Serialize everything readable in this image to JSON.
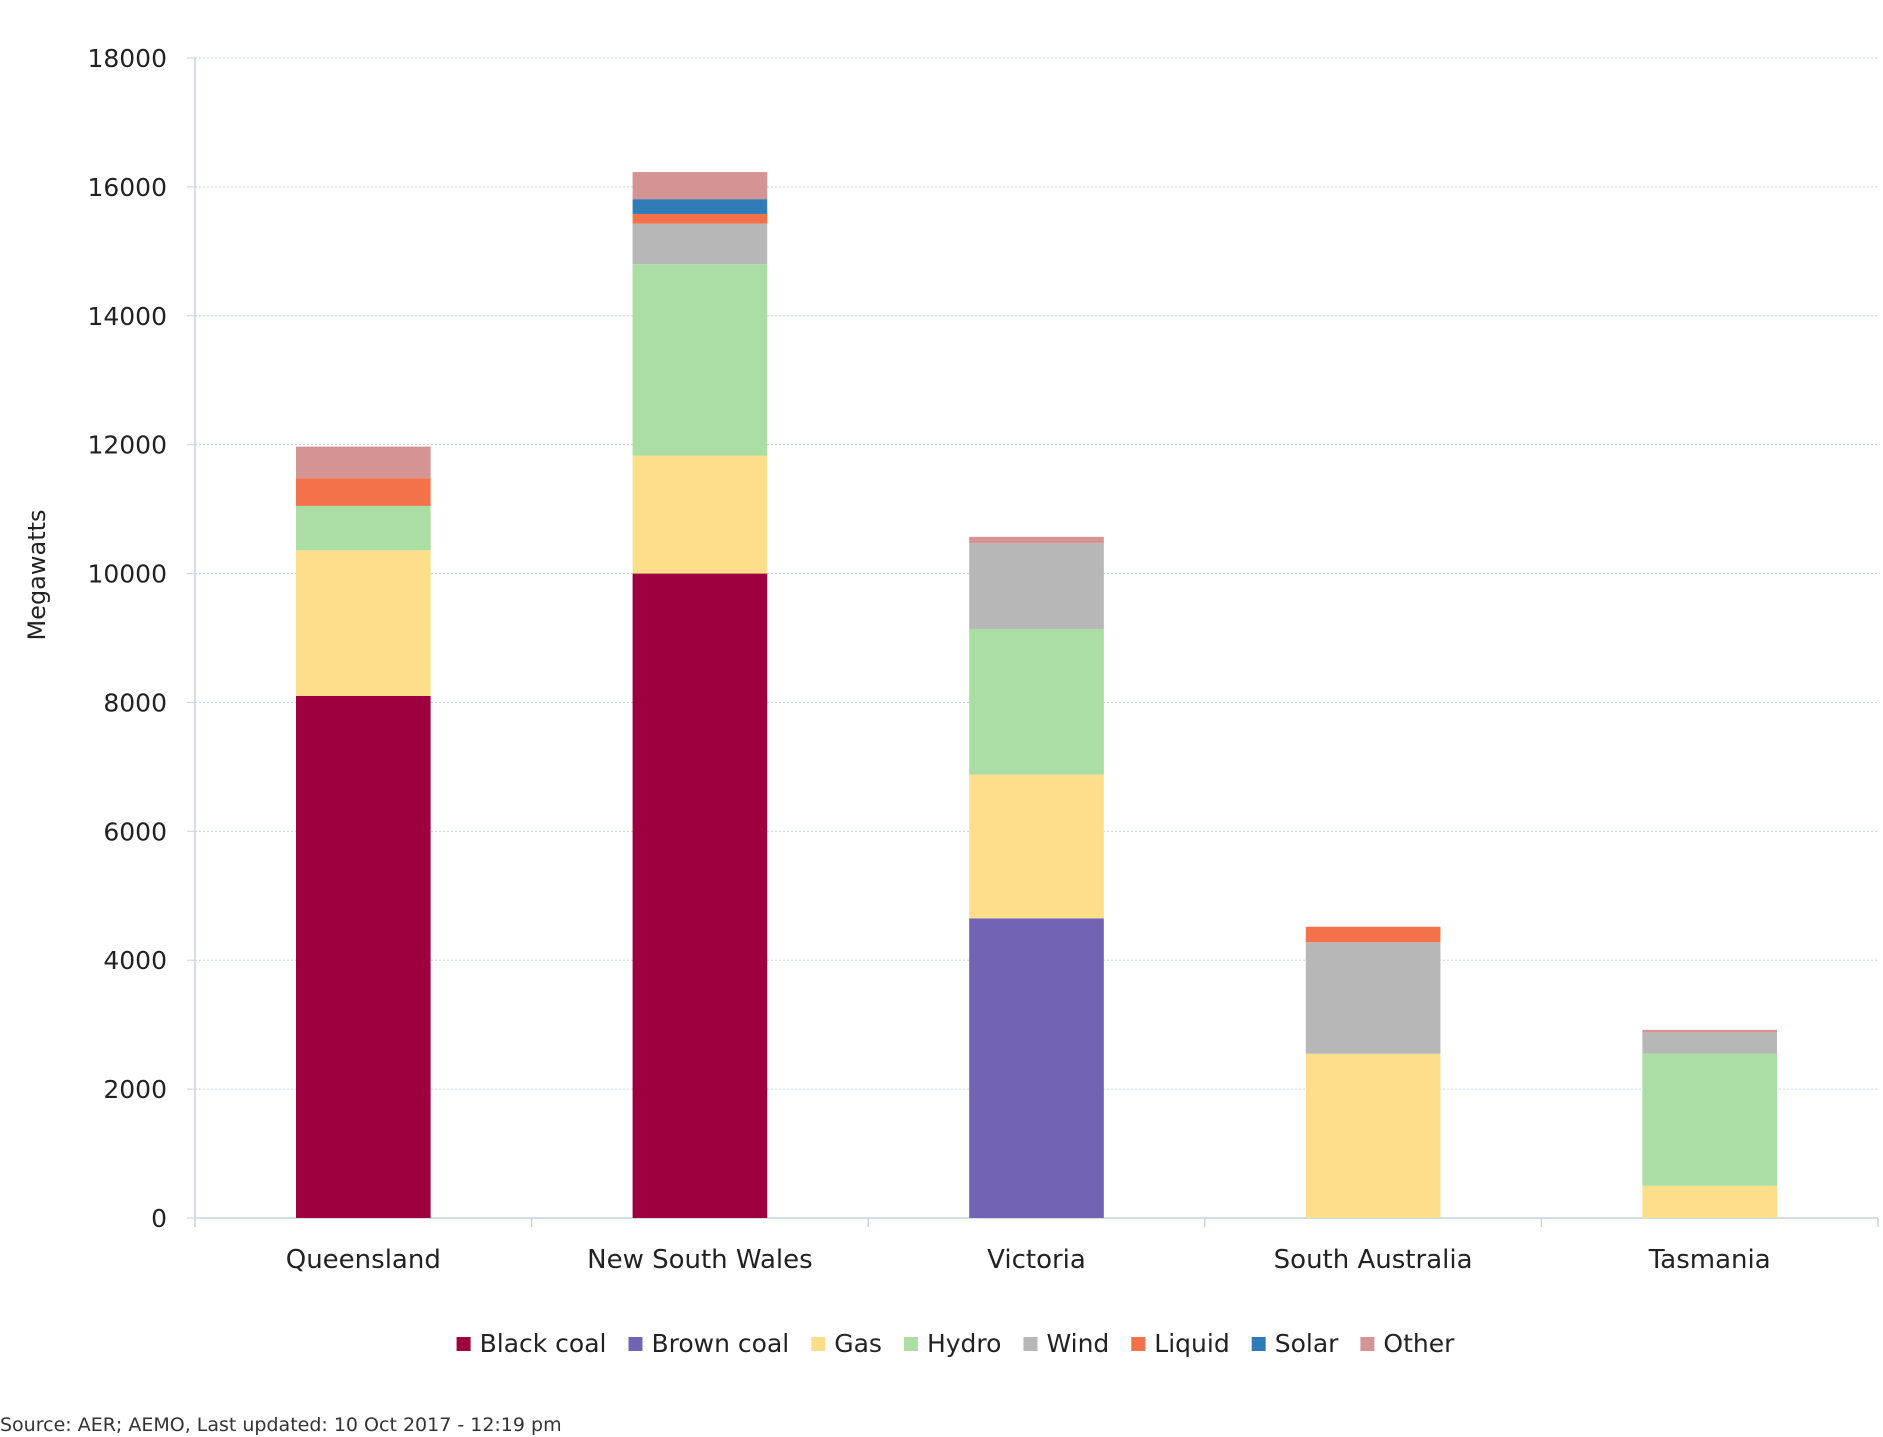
{
  "chart_data": {
    "type": "bar",
    "stacked": true,
    "title": "",
    "xlabel": "",
    "ylabel": "Megawatts",
    "ylim": [
      0,
      18000
    ],
    "yticks": [
      "0",
      "2000",
      "4000",
      "6000",
      "8000",
      "10000",
      "12000",
      "14000",
      "16000",
      "18000"
    ],
    "grid": true,
    "legend_position": "bottom",
    "categories": [
      "Queensland",
      "New South Wales",
      "Victoria",
      "South Australia",
      "Tasmania"
    ],
    "series": [
      {
        "name": "Black coal",
        "color": "#9e003f",
        "values": [
          8100,
          10000,
          0,
          0,
          0
        ]
      },
      {
        "name": "Brown coal",
        "color": "#7264b3",
        "values": [
          0,
          0,
          4650,
          0,
          0
        ]
      },
      {
        "name": "Gas",
        "color": "#fddf8b",
        "values": [
          2260,
          1830,
          2230,
          2550,
          500
        ]
      },
      {
        "name": "Hydro",
        "color": "#abdea4",
        "values": [
          690,
          2970,
          2260,
          0,
          2050
        ]
      },
      {
        "name": "Wind",
        "color": "#b7b7b7",
        "values": [
          0,
          630,
          1330,
          1730,
          330
        ]
      },
      {
        "name": "Liquid",
        "color": "#f4724a",
        "values": [
          430,
          150,
          0,
          240,
          0
        ]
      },
      {
        "name": "Solar",
        "color": "#2f7cb8",
        "values": [
          0,
          230,
          0,
          0,
          0
        ]
      },
      {
        "name": "Other",
        "color": "#d49494",
        "values": [
          490,
          420,
          100,
          0,
          40
        ]
      }
    ]
  },
  "source_note": "Source: AER; AEMO, Last updated: 10 Oct 2017 - 12:19 pm"
}
